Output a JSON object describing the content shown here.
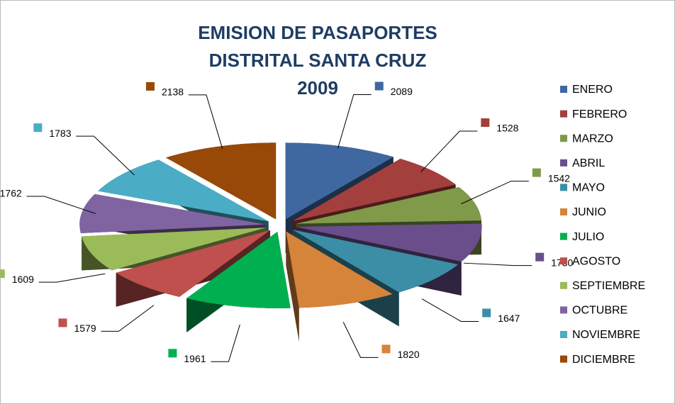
{
  "chart_data": {
    "type": "pie",
    "title": [
      "EMISION DE PASAPORTES",
      "DISTRITAL SANTA CRUZ",
      "2009"
    ],
    "categories": [
      "ENERO",
      "FEBRERO",
      "MARZO",
      "ABRIL",
      "MAYO",
      "JUNIO",
      "JULIO",
      "AGOSTO",
      "SEPTIEMBRE",
      "OCTUBRE",
      "NOVIEMBRE",
      "DICIEMBRE"
    ],
    "values": [
      2089,
      1528,
      1542,
      1730,
      1647,
      1820,
      1961,
      1579,
      1609,
      1762,
      1783,
      2138
    ],
    "colors": [
      "#3f68a0",
      "#a33f3d",
      "#7f9a48",
      "#6a4e8c",
      "#3b8ea5",
      "#d5843a",
      "#00b050",
      "#c0504d",
      "#9bbb59",
      "#8064a2",
      "#4bacc6",
      "#984807"
    ],
    "legend": "right"
  }
}
